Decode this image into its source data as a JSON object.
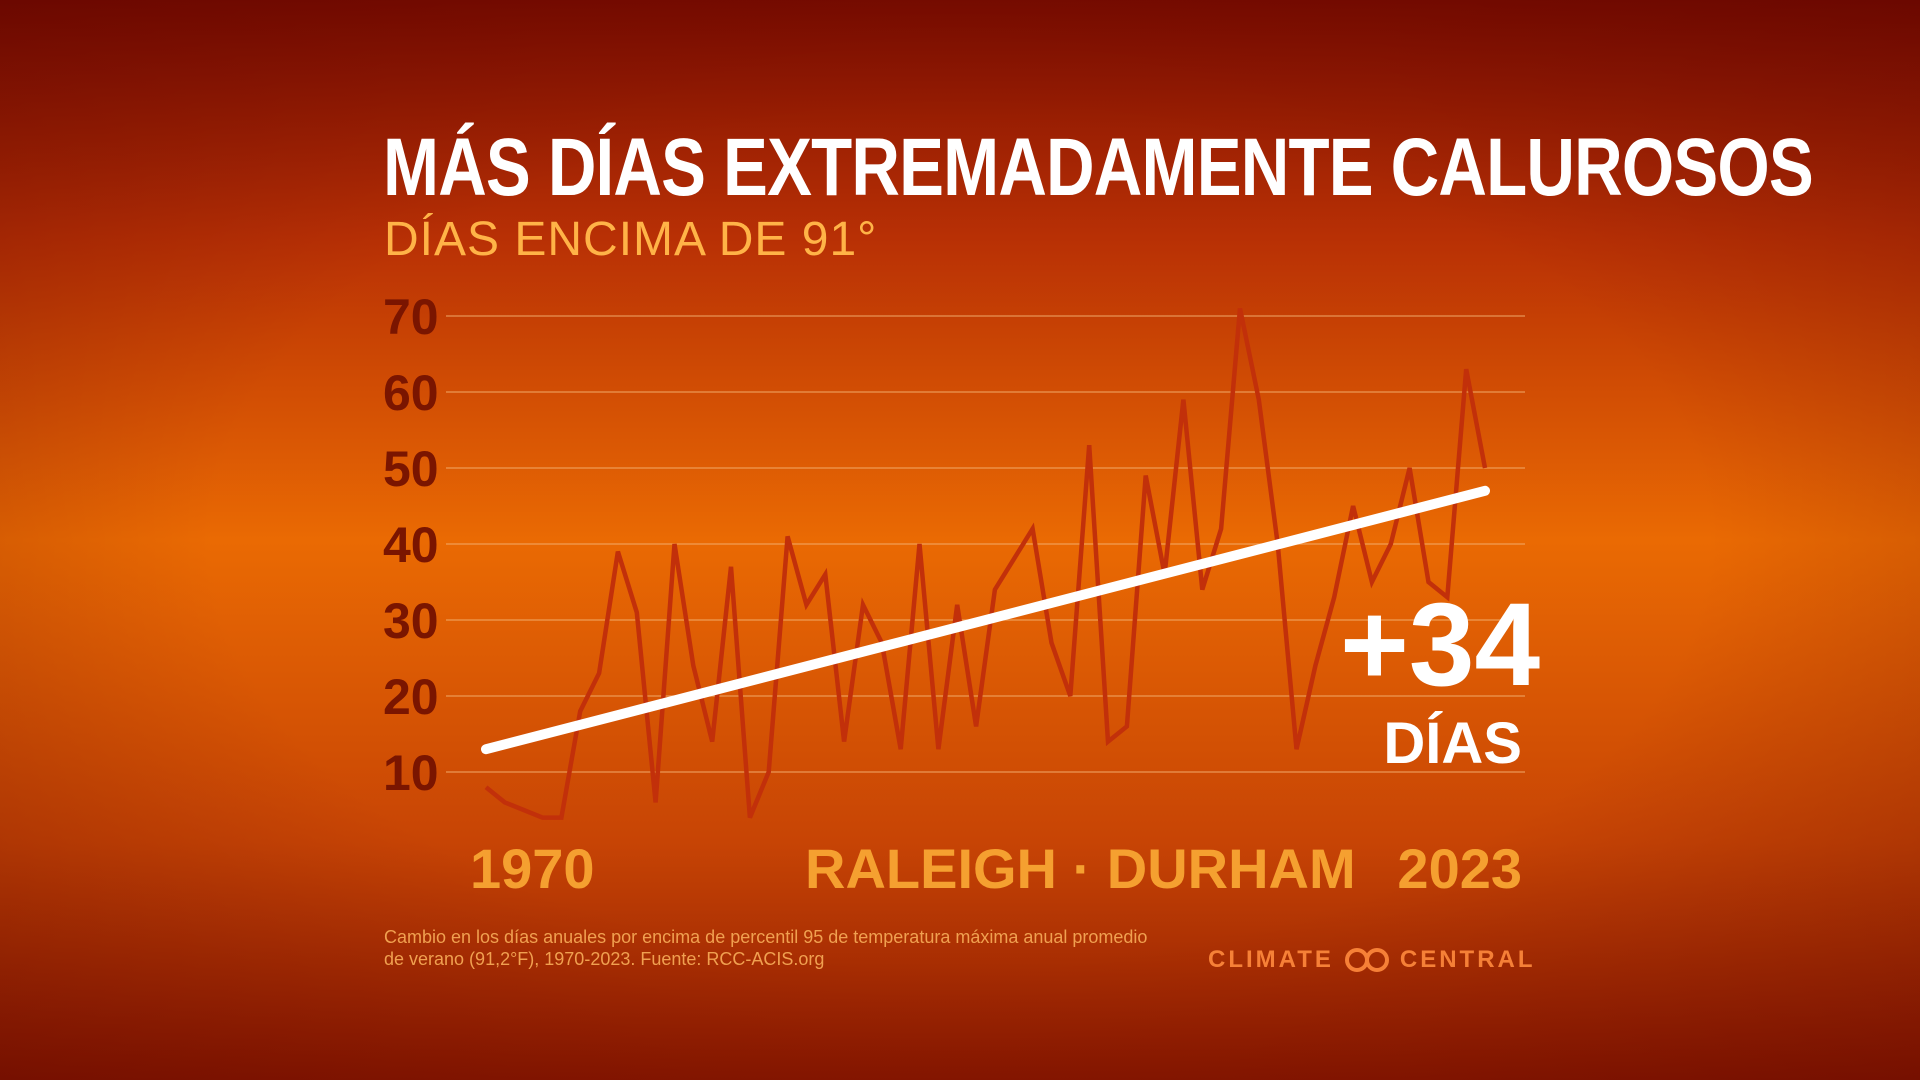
{
  "chart_data": {
    "type": "line",
    "title": "MÁS DÍAS EXTREMADAMENTE CALUROSOS",
    "subtitle": "DÍAS ENCIMA DE 91°",
    "xlabel_start": "1970",
    "xlabel_center": "RALEIGH · DURHAM",
    "xlabel_end": "2023",
    "x": [
      1970,
      1971,
      1972,
      1973,
      1974,
      1975,
      1976,
      1977,
      1978,
      1979,
      1980,
      1981,
      1982,
      1983,
      1984,
      1985,
      1986,
      1987,
      1988,
      1989,
      1990,
      1991,
      1992,
      1993,
      1994,
      1995,
      1996,
      1997,
      1998,
      1999,
      2000,
      2001,
      2002,
      2003,
      2004,
      2005,
      2006,
      2007,
      2008,
      2009,
      2010,
      2011,
      2012,
      2013,
      2014,
      2015,
      2016,
      2017,
      2018,
      2019,
      2020,
      2021,
      2022,
      2023
    ],
    "series": [
      {
        "values": [
          8,
          6,
          5,
          4,
          4,
          18,
          23,
          39,
          31,
          6,
          40,
          24,
          14,
          37,
          4,
          10,
          41,
          32,
          36,
          14,
          32,
          27,
          13,
          40,
          13,
          32,
          16,
          34,
          38,
          42,
          27,
          20,
          53,
          14,
          16,
          49,
          36,
          59,
          34,
          42,
          71,
          59,
          40,
          13,
          24,
          33,
          45,
          35,
          40,
          50,
          35,
          33,
          63,
          50
        ]
      }
    ],
    "trend": {
      "start": 13,
      "end": 47
    },
    "ylim": [
      0,
      70
    ],
    "yticks": [
      10,
      20,
      30,
      40,
      50,
      60,
      70
    ],
    "grid": true,
    "callout_value": "+34",
    "callout_unit": "DÍAS",
    "footnote": "Cambio en los días anuales por encima de percentil 95 de temperatura máxima anual promedio de verano (91,2°F), 1970-2023. Fuente: RCC-ACIS.org",
    "logo_text_left": "CLIMATE",
    "logo_text_right": "CENTRAL",
    "colors": {
      "data_line": "#c2300a",
      "trend_line": "#ffffff",
      "grid": "#f3b070",
      "ytick": "#7a1500",
      "xlabel": "#f5a030",
      "subtitle": "#ffb347"
    }
  }
}
